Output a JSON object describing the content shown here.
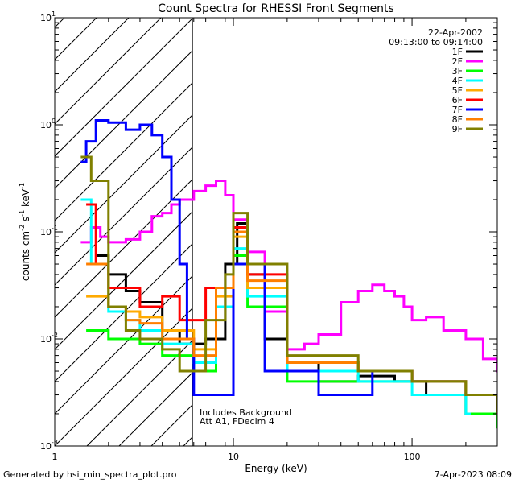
{
  "chart_data": {
    "type": "line",
    "title": "Count Spectra for RHESSI Front Segments",
    "xlabel": "Energy (keV)",
    "ylabel_parts": {
      "base": "counts cm",
      "sup1": "-2",
      "mid1": " s",
      "sup2": "-1",
      "mid2": " keV",
      "sup3": "-1"
    },
    "x_scale": "log",
    "y_scale": "log",
    "xlim": [
      1,
      300
    ],
    "ylim": [
      0.001,
      10
    ],
    "x_ticks": [
      {
        "value": 1,
        "label": "1"
      },
      {
        "value": 10,
        "label": "10"
      },
      {
        "value": 100,
        "label": "100"
      }
    ],
    "y_ticks": [
      {
        "value": 0.001,
        "base": "10",
        "exp": "-3"
      },
      {
        "value": 0.01,
        "base": "10",
        "exp": "-2"
      },
      {
        "value": 0.1,
        "base": "10",
        "exp": "-1"
      },
      {
        "value": 1,
        "base": "10",
        "exp": "0"
      },
      {
        "value": 10,
        "base": "10",
        "exp": "1"
      }
    ],
    "date": "22-Apr-2002",
    "time_range": "09:13:00 to 09:14:00",
    "hatched_region_xmax": 5.9,
    "annotations": [
      "Includes Background",
      "Att A1, FDecim 4"
    ],
    "legend_position": "top-right",
    "series": [
      {
        "name": "1F",
        "color": "#000000",
        "points": [
          [
            1.7,
            0.06
          ],
          [
            2.0,
            0.04
          ],
          [
            2.5,
            0.028
          ],
          [
            3.0,
            0.022
          ],
          [
            4.0,
            0.012
          ],
          [
            5.0,
            0.009
          ],
          [
            7.0,
            0.01
          ],
          [
            9.0,
            0.05
          ],
          [
            10.5,
            0.12
          ],
          [
            12.0,
            0.04
          ],
          [
            15.0,
            0.01
          ],
          [
            20.0,
            0.006
          ],
          [
            30.0,
            0.004
          ],
          [
            50.0,
            0.0045
          ],
          [
            80.0,
            0.004
          ],
          [
            120.0,
            0.003
          ],
          [
            200.0,
            0.002
          ],
          [
            300.0,
            0.0015
          ]
        ]
      },
      {
        "name": "2F",
        "color": "#ff00ff",
        "points": [
          [
            1.4,
            0.08
          ],
          [
            1.6,
            0.11
          ],
          [
            1.8,
            0.09
          ],
          [
            2.0,
            0.08
          ],
          [
            2.5,
            0.085
          ],
          [
            3.0,
            0.1
          ],
          [
            3.5,
            0.14
          ],
          [
            4.0,
            0.15
          ],
          [
            4.5,
            0.18
          ],
          [
            5.0,
            0.2
          ],
          [
            6.0,
            0.24
          ],
          [
            7.0,
            0.27
          ],
          [
            8.0,
            0.3
          ],
          [
            9.0,
            0.22
          ],
          [
            10.0,
            0.13
          ],
          [
            12.0,
            0.065
          ],
          [
            15.0,
            0.018
          ],
          [
            20.0,
            0.008
          ],
          [
            25.0,
            0.009
          ],
          [
            30.0,
            0.011
          ],
          [
            40.0,
            0.022
          ],
          [
            50.0,
            0.028
          ],
          [
            60.0,
            0.032
          ],
          [
            70.0,
            0.028
          ],
          [
            80.0,
            0.025
          ],
          [
            90.0,
            0.02
          ],
          [
            100.0,
            0.015
          ],
          [
            120.0,
            0.016
          ],
          [
            150.0,
            0.012
          ],
          [
            200.0,
            0.01
          ],
          [
            250.0,
            0.0065
          ],
          [
            300.0,
            0.005
          ]
        ]
      },
      {
        "name": "3F",
        "color": "#00ff00",
        "points": [
          [
            1.5,
            0.012
          ],
          [
            2.0,
            0.01
          ],
          [
            2.5,
            0.01
          ],
          [
            3.0,
            0.009
          ],
          [
            4.0,
            0.007
          ],
          [
            6.0,
            0.005
          ],
          [
            8.0,
            0.02
          ],
          [
            10.0,
            0.06
          ],
          [
            12.0,
            0.02
          ],
          [
            20.0,
            0.004
          ],
          [
            50.0,
            0.004
          ],
          [
            100.0,
            0.004
          ],
          [
            200.0,
            0.002
          ],
          [
            300.0,
            0.0015
          ]
        ]
      },
      {
        "name": "4F",
        "color": "#00ffff",
        "points": [
          [
            1.4,
            0.2
          ],
          [
            1.6,
            0.05
          ],
          [
            2.0,
            0.018
          ],
          [
            2.5,
            0.015
          ],
          [
            3.0,
            0.012
          ],
          [
            4.0,
            0.009
          ],
          [
            6.0,
            0.006
          ],
          [
            8.0,
            0.02
          ],
          [
            10.0,
            0.07
          ],
          [
            12.0,
            0.025
          ],
          [
            20.0,
            0.005
          ],
          [
            50.0,
            0.004
          ],
          [
            100.0,
            0.003
          ],
          [
            200.0,
            0.002
          ]
        ]
      },
      {
        "name": "5F",
        "color": "#ffaa00",
        "points": [
          [
            1.5,
            0.025
          ],
          [
            2.0,
            0.02
          ],
          [
            2.5,
            0.018
          ],
          [
            3.0,
            0.016
          ],
          [
            4.0,
            0.012
          ],
          [
            6.0,
            0.008
          ],
          [
            8.0,
            0.025
          ],
          [
            10.0,
            0.09
          ],
          [
            12.0,
            0.03
          ],
          [
            20.0,
            0.006
          ],
          [
            50.0,
            0.005
          ],
          [
            100.0,
            0.004
          ],
          [
            200.0,
            0.003
          ]
        ]
      },
      {
        "name": "6F",
        "color": "#ff0000",
        "points": [
          [
            1.5,
            0.18
          ],
          [
            1.7,
            0.05
          ],
          [
            2.0,
            0.03
          ],
          [
            2.5,
            0.03
          ],
          [
            3.0,
            0.02
          ],
          [
            4.0,
            0.025
          ],
          [
            5.0,
            0.015
          ],
          [
            7.0,
            0.03
          ],
          [
            9.0,
            0.03
          ],
          [
            10.0,
            0.11
          ],
          [
            12.0,
            0.04
          ],
          [
            20.0,
            0.006
          ],
          [
            50.0,
            0.005
          ],
          [
            100.0,
            0.004
          ],
          [
            200.0,
            0.003
          ]
        ]
      },
      {
        "name": "7F",
        "color": "#0000ff",
        "points": [
          [
            1.4,
            0.45
          ],
          [
            1.5,
            0.7
          ],
          [
            1.7,
            1.1
          ],
          [
            2.0,
            1.05
          ],
          [
            2.5,
            0.9
          ],
          [
            3.0,
            1.0
          ],
          [
            3.5,
            0.8
          ],
          [
            4.0,
            0.5
          ],
          [
            4.5,
            0.2
          ],
          [
            5.0,
            0.05
          ],
          [
            5.5,
            0.01
          ],
          [
            6.0,
            0.003
          ],
          [
            10.0,
            0.05
          ],
          [
            15.0,
            0.005
          ],
          [
            30.0,
            0.003
          ],
          [
            60.0,
            0.005
          ],
          [
            100.0,
            0.004
          ],
          [
            200.0,
            0.003
          ],
          [
            300.0,
            0.002
          ]
        ]
      },
      {
        "name": "8F",
        "color": "#ff7f00",
        "points": [
          [
            1.5,
            0.05
          ],
          [
            2.0,
            0.02
          ],
          [
            2.5,
            0.015
          ],
          [
            3.0,
            0.014
          ],
          [
            4.0,
            0.01
          ],
          [
            6.0,
            0.007
          ],
          [
            8.0,
            0.03
          ],
          [
            10.0,
            0.1
          ],
          [
            12.0,
            0.035
          ],
          [
            20.0,
            0.006
          ],
          [
            50.0,
            0.005
          ],
          [
            100.0,
            0.004
          ],
          [
            200.0,
            0.003
          ]
        ]
      },
      {
        "name": "9F",
        "color": "#808000",
        "points": [
          [
            1.4,
            0.5
          ],
          [
            1.6,
            0.3
          ],
          [
            2.0,
            0.02
          ],
          [
            2.5,
            0.012
          ],
          [
            3.0,
            0.01
          ],
          [
            4.0,
            0.008
          ],
          [
            5.0,
            0.005
          ],
          [
            7.0,
            0.015
          ],
          [
            9.0,
            0.04
          ],
          [
            10.0,
            0.15
          ],
          [
            12.0,
            0.05
          ],
          [
            20.0,
            0.007
          ],
          [
            50.0,
            0.005
          ],
          [
            100.0,
            0.004
          ],
          [
            200.0,
            0.003
          ],
          [
            300.0,
            0.002
          ]
        ]
      }
    ]
  },
  "footer": {
    "left": "Generated by hsi_min_spectra_plot.pro",
    "right": "7-Apr-2023 08:09"
  }
}
